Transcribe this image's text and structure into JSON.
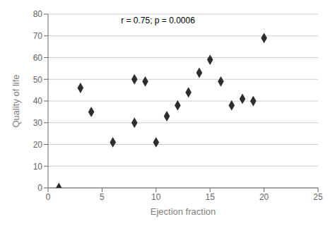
{
  "chart_data": {
    "type": "scatter",
    "x": [
      1,
      3,
      4,
      6,
      8,
      8,
      9,
      10,
      11,
      12,
      13,
      14,
      15,
      16,
      17,
      18,
      19,
      20
    ],
    "values": [
      0,
      46,
      35,
      21,
      50,
      30,
      49,
      21,
      33,
      38,
      44,
      53,
      59,
      49,
      38,
      41,
      40,
      69
    ],
    "xlabel": "Ejection fraction",
    "ylabel": "Quality of life",
    "annotation": "r = 0.75; p = 0.0006",
    "xlim": [
      0,
      25
    ],
    "ylim": [
      0,
      80
    ],
    "xticks": [
      0,
      5,
      10,
      15,
      20,
      25
    ],
    "yticks": [
      0,
      10,
      20,
      30,
      40,
      50,
      60,
      70,
      80
    ],
    "color": "#2d2d2d",
    "marker": "diamond",
    "grid": "y"
  }
}
